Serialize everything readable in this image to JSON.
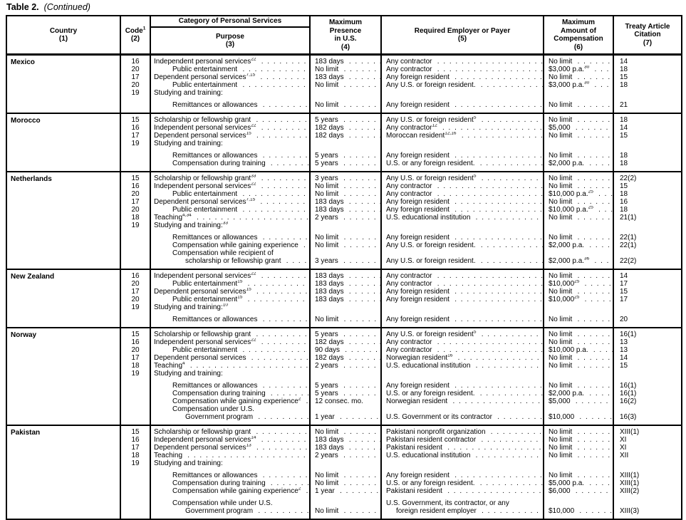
{
  "title": {
    "text": "Table 2.",
    "continued": "(Continued)"
  },
  "header": {
    "category_band": "Category of Personal Services",
    "country": {
      "label": "Country",
      "num": "(1)"
    },
    "code": {
      "label": "Code",
      "sup": "1",
      "num": "(2)"
    },
    "purpose": {
      "label": "Purpose",
      "num": "(3)"
    },
    "presence": {
      "lines": [
        "Maximum",
        "Presence",
        "in U.S."
      ],
      "num": "(4)"
    },
    "employer": {
      "label": "Required Employer or Payer",
      "num": "(5)"
    },
    "amount": {
      "lines": [
        "Maximum",
        "Amount of",
        "Compensation"
      ],
      "num": "(6)"
    },
    "citation": {
      "lines": [
        "Treaty Article",
        "Citation"
      ],
      "num": "(7)"
    }
  },
  "sections": [
    {
      "country": "Mexico",
      "rows": [
        {
          "code": "16",
          "purpose": "Independent personal services",
          "purpose_sup": "22",
          "presence": "183 days",
          "employer": "Any contractor",
          "amount": "No limit",
          "citation": "14"
        },
        {
          "code": "20",
          "purpose": "Public entertainment",
          "indent": 1,
          "presence": "No limit",
          "employer": "Any contractor",
          "amount": "$3,000 p.a.",
          "amount_sup": "30",
          "citation": "18"
        },
        {
          "code": "17",
          "purpose": "Dependent personal services",
          "purpose_sup": "7,15",
          "presence": "183 days",
          "employer": "Any foreign resident",
          "amount": "No limit",
          "citation": "15"
        },
        {
          "code": "20",
          "purpose": "Public entertainment",
          "indent": 1,
          "presence": "No limit",
          "employer": "Any U.S. or foreign resident.",
          "amount": "$3,000 p.a.",
          "amount_sup": "30",
          "citation": "18"
        },
        {
          "code": "19",
          "purpose": "Studying and training:",
          "no_leader": true
        },
        {
          "purpose": "Remittances or allowances",
          "indent": 1,
          "gap": true,
          "presence": "No limit",
          "employer": "Any foreign resident",
          "amount": "No limit",
          "citation": "21"
        }
      ]
    },
    {
      "country": "Morocco",
      "rows": [
        {
          "code": "15",
          "purpose": "Scholarship or fellowship grant",
          "presence": "5 years",
          "employer": "Any U.S. or foreign resident",
          "employer_sup": "5",
          "amount": "No limit",
          "citation": "18"
        },
        {
          "code": "16",
          "purpose": "Independent personal services",
          "purpose_sup": "22",
          "presence": "182 days",
          "employer": "Any contractor",
          "employer_sup": "12",
          "amount": "$5,000",
          "citation": "14"
        },
        {
          "code": "17",
          "purpose": "Dependent personal services",
          "purpose_sup": "15",
          "presence": "182 days",
          "employer": "Moroccan resident",
          "employer_sup": "12,16",
          "amount": "No limit",
          "citation": "15"
        },
        {
          "code": "19",
          "purpose": "Studying and training:",
          "no_leader": true
        },
        {
          "purpose": "Remittances or allowances",
          "indent": 1,
          "gap": true,
          "presence": "5 years",
          "employer": "Any foreign resident",
          "amount": "No limit",
          "citation": "18"
        },
        {
          "purpose": "Compensation during training",
          "indent": 1,
          "presence": "5 years",
          "employer": "U.S. or any foreign resident.",
          "amount": "$2,000 p.a.",
          "citation": "18"
        }
      ]
    },
    {
      "country": "Netherlands",
      "rows": [
        {
          "code": "15",
          "purpose": "Scholarship or fellowship grant",
          "purpose_sup": "33",
          "presence": "3 years",
          "employer": "Any U.S. or foreign resident",
          "employer_sup": "5",
          "amount": "No limit",
          "citation": "22(2)"
        },
        {
          "code": "16",
          "purpose": "Independent personal services",
          "purpose_sup": "22",
          "presence": "No limit",
          "employer": "Any contractor",
          "amount": "No limit",
          "citation": "15"
        },
        {
          "code": "20",
          "purpose": "Public entertainment",
          "indent": 1,
          "presence": "No limit",
          "employer": "Any contractor",
          "amount": "$10,000 p.a.",
          "amount_sup": "25",
          "citation": "18"
        },
        {
          "code": "17",
          "purpose": "Dependent personal services",
          "purpose_sup": "7,15",
          "presence": "183 days",
          "employer": "Any foreign resident",
          "amount": "No limit",
          "citation": "16"
        },
        {
          "code": "20",
          "purpose": "Public entertainment",
          "indent": 1,
          "presence": "183 days",
          "employer": "Any foreign resident",
          "amount": "$10,000 p.a.",
          "amount_sup": "25",
          "citation": "18"
        },
        {
          "code": "18",
          "purpose": "Teaching",
          "purpose_sup": "4,34",
          "presence": "2 years",
          "employer": "U.S. educational institution",
          "amount": "No limit",
          "citation": "21(1)"
        },
        {
          "code": "19",
          "purpose": "Studying and training:",
          "purpose_sup": "33",
          "no_leader": true
        },
        {
          "purpose": "Remittances or allowances",
          "indent": 1,
          "gap": true,
          "presence": "No limit",
          "employer": "Any foreign resident",
          "amount": "No limit",
          "citation": "22(1)"
        },
        {
          "purpose": "Compensation while gaining experience",
          "indent": 1,
          "presence": "No limit",
          "employer": "Any U.S. or foreign resident.",
          "amount": "$2,000 p.a.",
          "citation": "22(1)"
        },
        {
          "purpose": "Compensation while recipient of",
          "indent": 1,
          "no_leader": true
        },
        {
          "purpose": "scholarship or fellowship grant",
          "indent": 2,
          "presence": "3 years",
          "employer": "Any U.S. or foreign resident.",
          "amount": "$2,000 p.a.",
          "amount_sup": "36",
          "citation": "22(2)"
        }
      ]
    },
    {
      "country": "New Zealand",
      "rows": [
        {
          "code": "16",
          "purpose": "Independent personal services",
          "purpose_sup": "22",
          "presence": "183 days",
          "employer": "Any contractor",
          "amount": "No limit",
          "citation": "14"
        },
        {
          "code": "20",
          "purpose": "Public entertainment",
          "purpose_sup": "15",
          "indent": 1,
          "presence": "183 days",
          "employer": "Any contractor",
          "amount": "$10,000",
          "amount_sup": "25",
          "citation": "17"
        },
        {
          "code": "17",
          "purpose": "Dependent personal services",
          "purpose_sup": "15",
          "presence": "183 days",
          "employer": "Any foreign resident",
          "amount": "No limit",
          "citation": "15"
        },
        {
          "code": "20",
          "purpose": "Public entertainment",
          "purpose_sup": "15",
          "indent": 1,
          "presence": "183 days",
          "employer": "Any foreign resident",
          "amount": "$10,000",
          "amount_sup": "25",
          "citation": "17"
        },
        {
          "code": "19",
          "purpose": "Studying and training:",
          "purpose_sup": "10",
          "no_leader": true
        },
        {
          "purpose": "Remittances or allowances",
          "indent": 1,
          "gap": true,
          "presence": "No limit",
          "employer": "Any foreign resident",
          "amount": "No limit",
          "citation": "20"
        }
      ]
    },
    {
      "country": "Norway",
      "rows": [
        {
          "code": "15",
          "purpose": "Scholarship or fellowship grant",
          "presence": "5 years",
          "employer": "Any U.S. or foreign resident",
          "employer_sup": "5",
          "amount": "No limit",
          "citation": "16(1)"
        },
        {
          "code": "16",
          "purpose": "Independent personal services",
          "purpose_sup": "22",
          "presence": "182 days",
          "employer": "Any contractor",
          "amount": "No limit",
          "citation": "13"
        },
        {
          "code": "20",
          "purpose": "Public entertainment",
          "indent": 1,
          "presence": "90 days",
          "employer": "Any contractor",
          "amount": "$10,000 p.a.",
          "citation": "13"
        },
        {
          "code": "17",
          "purpose": "Dependent personal services",
          "presence": "182 days",
          "employer": "Norwegian resident",
          "employer_sup": "16",
          "amount": "No limit",
          "citation": "14"
        },
        {
          "code": "18",
          "purpose": "Teaching",
          "purpose_sup": "4",
          "presence": "2 years",
          "employer": "U.S. educational institution",
          "amount": "No limit",
          "citation": "15"
        },
        {
          "code": "19",
          "purpose": "Studying and training:",
          "no_leader": true
        },
        {
          "purpose": "Remittances or allowances",
          "indent": 1,
          "gap": true,
          "presence": "5 years",
          "employer": "Any foreign resident",
          "amount": "No limit",
          "citation": "16(1)"
        },
        {
          "purpose": "Compensation during training",
          "indent": 1,
          "presence": "5 years",
          "employer": "U.S. or any foreign resident.",
          "amount": "$2,000 p.a.",
          "citation": "16(1)"
        },
        {
          "purpose": "Compensation while gaining experience",
          "purpose_sup": "2",
          "indent": 1,
          "presence": "12 consec. mo.",
          "presence_no_leader": true,
          "employer": "Norwegian resident",
          "amount": "$5,000",
          "citation": "16(2)"
        },
        {
          "purpose": "Compensation under U.S.",
          "indent": 1,
          "no_leader": true
        },
        {
          "purpose": "Government program",
          "indent": 2,
          "presence": "1 year",
          "employer": "U.S. Government or its contractor",
          "amount": "$10,000",
          "citation": "16(3)"
        }
      ]
    },
    {
      "country": "Pakistan",
      "rows": [
        {
          "code": "15",
          "purpose": "Scholarship or fellowship grant",
          "presence": "No limit",
          "employer": "Pakistani nonprofit organization",
          "amount": "No limit",
          "citation": "XIII(1)"
        },
        {
          "code": "16",
          "purpose": "Independent personal services",
          "purpose_sup": "14",
          "presence": "183 days",
          "employer": "Pakistani resident contractor",
          "amount": "No limit",
          "citation": "XI"
        },
        {
          "code": "17",
          "purpose": "Dependent personal services",
          "purpose_sup": "13",
          "presence": "183 days",
          "employer": "Pakistani resident",
          "amount": "No limit",
          "citation": "XI"
        },
        {
          "code": "18",
          "purpose": "Teaching",
          "presence": "2 years",
          "employer": "U.S. educational institution",
          "amount": "No limit",
          "citation": "XII"
        },
        {
          "code": "19",
          "purpose": "Studying and training:",
          "no_leader": true
        },
        {
          "purpose": "Remittances or allowances",
          "indent": 1,
          "gap": true,
          "presence": "No limit",
          "employer": "Any foreign resident",
          "amount": "No limit",
          "citation": "XIII(1)"
        },
        {
          "purpose": "Compensation during training",
          "indent": 1,
          "presence": "No limit",
          "employer": "U.S. or any foreign resident.",
          "amount": "$5,000 p.a.",
          "citation": "XIII(1)"
        },
        {
          "purpose": "Compensation while gaining experience",
          "purpose_sup": "2",
          "indent": 1,
          "presence": "1 year",
          "employer": "Pakistani resident",
          "amount": "$6,000",
          "citation": "XIII(2)"
        },
        {
          "purpose": "Compensation while under U.S.",
          "indent": 1,
          "gap": true,
          "no_leader": true,
          "employer": "U.S. Government, its contractor, or any",
          "employer_no_leader": true
        },
        {
          "purpose": "Government program",
          "indent": 2,
          "presence": "No limit",
          "employer": "foreign resident employer",
          "employer_indent": 1,
          "amount": "$10,000",
          "citation": "XIII(3)"
        }
      ]
    }
  ]
}
